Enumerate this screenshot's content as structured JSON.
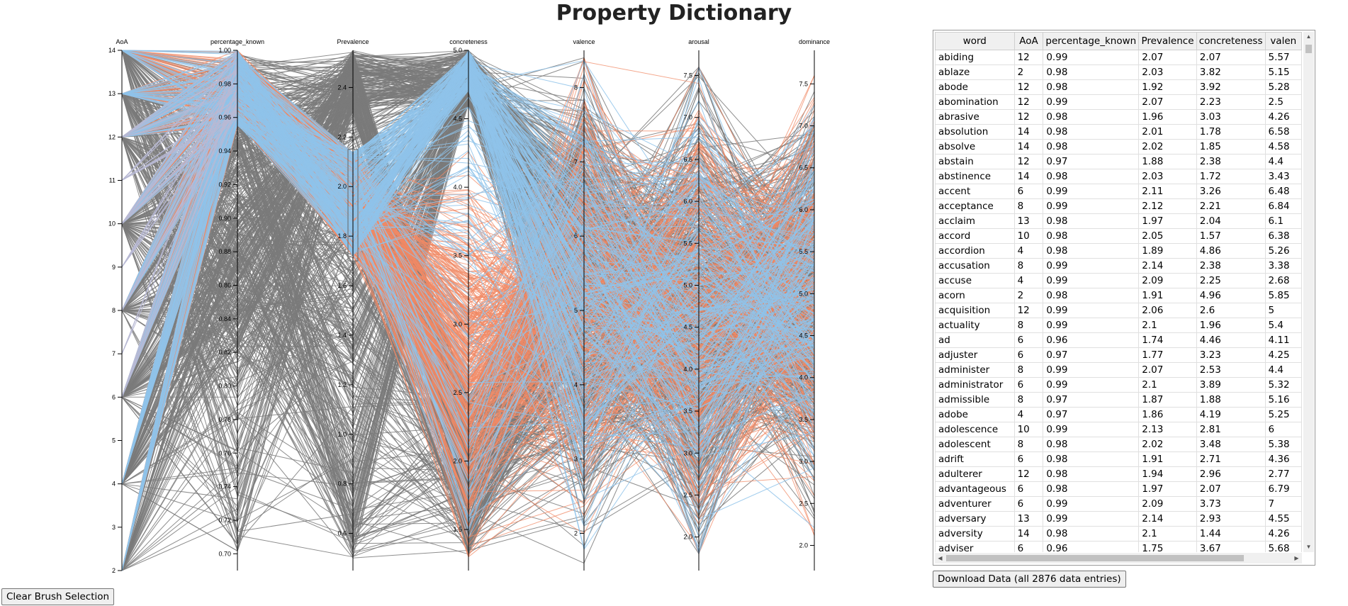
{
  "page": {
    "title": "Property Dictionary",
    "clear_button_label": "Clear Brush Selection",
    "download_button_label": "Download Data (all 2876 data entries)"
  },
  "colors": {
    "base_line": "#7a7a7a",
    "highlight_orange": "#f08a65",
    "highlight_blue": "#8fc3ea",
    "highlight_lavender": "#b8b9d4"
  },
  "chart_data": {
    "type": "parallel-coordinates",
    "title": "",
    "axes": [
      {
        "name": "AoA",
        "range": [
          2,
          14
        ],
        "ticks": [
          "2",
          "3",
          "4",
          "5",
          "6",
          "7",
          "8",
          "9",
          "10",
          "11",
          "12",
          "13",
          "14"
        ]
      },
      {
        "name": "percentage_known",
        "range": [
          0.69,
          1.0
        ],
        "ticks": [
          "0.70",
          "0.72",
          "0.74",
          "0.76",
          "0.78",
          "0.80",
          "0.82",
          "0.84",
          "0.86",
          "0.88",
          "0.90",
          "0.92",
          "0.94",
          "0.96",
          "0.98",
          "1.00"
        ]
      },
      {
        "name": "Prevalence",
        "range": [
          0.45,
          2.55
        ],
        "ticks": [
          "0.6",
          "0.8",
          "1.0",
          "1.2",
          "1.4",
          "1.6",
          "1.8",
          "2.0",
          "2.2",
          "2.4"
        ]
      },
      {
        "name": "concreteness",
        "range": [
          1.2,
          5.0
        ],
        "ticks": [
          "1.5",
          "2.0",
          "2.5",
          "3.0",
          "3.5",
          "4.0",
          "4.5",
          "5.0"
        ]
      },
      {
        "name": "valence",
        "range": [
          1.5,
          8.5
        ],
        "ticks": [
          "2",
          "3",
          "4",
          "5",
          "6",
          "7",
          "8"
        ]
      },
      {
        "name": "arousal",
        "range": [
          1.6,
          7.8
        ],
        "ticks": [
          "2.0",
          "2.5",
          "3.0",
          "3.5",
          "4.0",
          "4.5",
          "5.0",
          "5.5",
          "6.0",
          "6.5",
          "7.0",
          "7.5"
        ]
      },
      {
        "name": "dominance",
        "range": [
          1.7,
          7.9
        ],
        "ticks": [
          "2.0",
          "2.5",
          "3.0",
          "3.5",
          "4.0",
          "4.5",
          "5.0",
          "5.5",
          "6.0",
          "6.5",
          "7.0",
          "7.5"
        ]
      }
    ],
    "brush": {
      "axis": "Prevalence",
      "range": [
        1.7,
        2.15
      ]
    },
    "color_groups": [
      "base",
      "orange",
      "blue"
    ],
    "grid": false,
    "legend": "none"
  },
  "table": {
    "columns": [
      "word",
      "AoA",
      "percentage_known",
      "Prevalence",
      "concreteness",
      "valen"
    ],
    "rows": [
      [
        "abiding",
        "12",
        "0.99",
        "2.07",
        "2.07",
        "5.57"
      ],
      [
        "ablaze",
        "2",
        "0.98",
        "2.03",
        "3.82",
        "5.15"
      ],
      [
        "abode",
        "12",
        "0.98",
        "1.92",
        "3.92",
        "5.28"
      ],
      [
        "abomination",
        "12",
        "0.99",
        "2.07",
        "2.23",
        "2.5"
      ],
      [
        "abrasive",
        "12",
        "0.98",
        "1.96",
        "3.03",
        "4.26"
      ],
      [
        "absolution",
        "14",
        "0.98",
        "2.01",
        "1.78",
        "6.58"
      ],
      [
        "absolve",
        "14",
        "0.98",
        "2.02",
        "1.85",
        "4.58"
      ],
      [
        "abstain",
        "12",
        "0.97",
        "1.88",
        "2.38",
        "4.4"
      ],
      [
        "abstinence",
        "14",
        "0.98",
        "2.03",
        "1.72",
        "3.43"
      ],
      [
        "accent",
        "6",
        "0.99",
        "2.11",
        "3.26",
        "6.48"
      ],
      [
        "acceptance",
        "8",
        "0.99",
        "2.12",
        "2.21",
        "6.84"
      ],
      [
        "acclaim",
        "13",
        "0.98",
        "1.97",
        "2.04",
        "6.1"
      ],
      [
        "accord",
        "10",
        "0.98",
        "2.05",
        "1.57",
        "6.38"
      ],
      [
        "accordion",
        "4",
        "0.98",
        "1.89",
        "4.86",
        "5.26"
      ],
      [
        "accusation",
        "8",
        "0.99",
        "2.14",
        "2.38",
        "3.38"
      ],
      [
        "accuse",
        "4",
        "0.99",
        "2.09",
        "2.25",
        "2.68"
      ],
      [
        "acorn",
        "2",
        "0.98",
        "1.91",
        "4.96",
        "5.85"
      ],
      [
        "acquisition",
        "12",
        "0.99",
        "2.06",
        "2.6",
        "5"
      ],
      [
        "actuality",
        "8",
        "0.99",
        "2.1",
        "1.96",
        "5.4"
      ],
      [
        "ad",
        "6",
        "0.96",
        "1.74",
        "4.46",
        "4.11"
      ],
      [
        "adjuster",
        "6",
        "0.97",
        "1.77",
        "3.23",
        "4.25"
      ],
      [
        "administer",
        "8",
        "0.99",
        "2.07",
        "2.53",
        "4.4"
      ],
      [
        "administrator",
        "6",
        "0.99",
        "2.1",
        "3.89",
        "5.32"
      ],
      [
        "admissible",
        "8",
        "0.97",
        "1.87",
        "1.88",
        "5.16"
      ],
      [
        "adobe",
        "4",
        "0.97",
        "1.86",
        "4.19",
        "5.25"
      ],
      [
        "adolescence",
        "10",
        "0.99",
        "2.13",
        "2.81",
        "6"
      ],
      [
        "adolescent",
        "8",
        "0.98",
        "2.02",
        "3.48",
        "5.38"
      ],
      [
        "adrift",
        "6",
        "0.98",
        "1.91",
        "2.71",
        "4.36"
      ],
      [
        "adulterer",
        "12",
        "0.98",
        "1.94",
        "2.96",
        "2.77"
      ],
      [
        "advantageous",
        "6",
        "0.98",
        "1.97",
        "2.07",
        "6.79"
      ],
      [
        "adventurer",
        "6",
        "0.99",
        "2.09",
        "3.73",
        "7"
      ],
      [
        "adversary",
        "13",
        "0.99",
        "2.14",
        "2.93",
        "4.55"
      ],
      [
        "adversity",
        "14",
        "0.98",
        "2.1",
        "1.44",
        "4.26"
      ],
      [
        "adviser",
        "6",
        "0.96",
        "1.75",
        "3.67",
        "5.68"
      ]
    ]
  },
  "icons": {
    "scroll_up": "scroll-up-arrow-icon",
    "scroll_down": "scroll-down-arrow-icon",
    "scroll_left": "scroll-left-arrow-icon",
    "scroll_right": "scroll-right-arrow-icon"
  }
}
